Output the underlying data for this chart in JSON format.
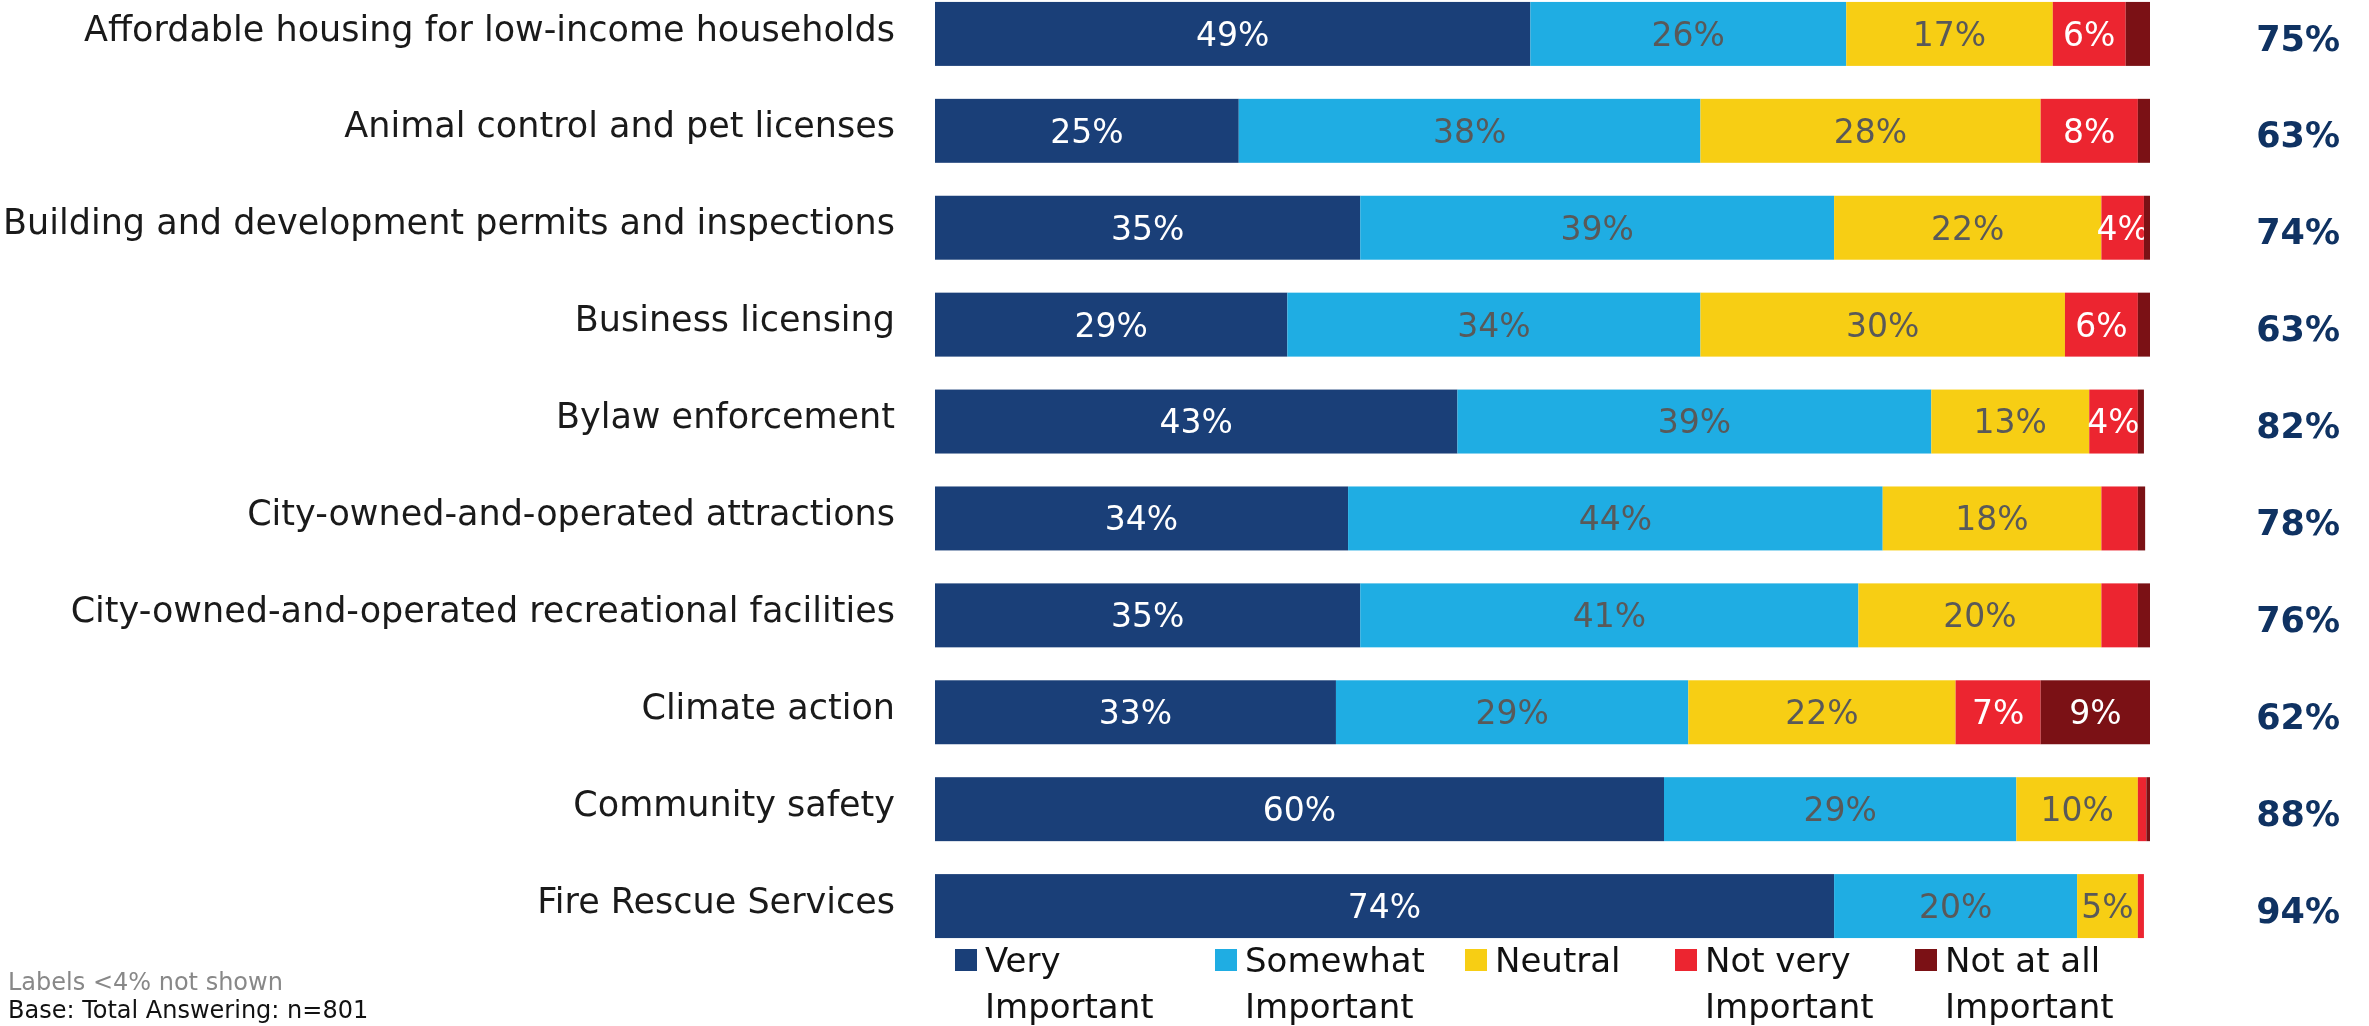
{
  "chart_data": {
    "type": "bar",
    "orientation": "horizontal",
    "stacked": true,
    "categories": [
      "Affordable housing for low-income households",
      "Animal control and pet licenses",
      "Building and development permits and inspections",
      "Business licensing",
      "Bylaw enforcement",
      "City-owned-and-operated attractions",
      "City-owned-and-operated recreational facilities",
      "Climate action",
      "Community safety",
      "Fire Rescue Services"
    ],
    "series": [
      {
        "name": "Very Important",
        "color": "#1a3f78",
        "values": [
          49,
          25,
          35,
          29,
          43,
          34,
          35,
          33,
          60,
          74
        ],
        "value_labels": [
          "49%",
          "25%",
          "35%",
          "29%",
          "43%",
          "34%",
          "35%",
          "33%",
          "60%",
          "74%"
        ]
      },
      {
        "name": "Somewhat Important",
        "color": "#1fade3",
        "values": [
          26,
          38,
          39,
          34,
          39,
          44,
          41,
          29,
          29,
          20
        ],
        "value_labels": [
          "26%",
          "38%",
          "39%",
          "34%",
          "39%",
          "44%",
          "41%",
          "29%",
          "29%",
          "20%"
        ]
      },
      {
        "name": "Neutral",
        "color": "#f7ce14",
        "values": [
          17,
          28,
          22,
          30,
          13,
          18,
          20,
          22,
          10,
          5
        ],
        "value_labels": [
          "17%",
          "28%",
          "22%",
          "30%",
          "13%",
          "18%",
          "20%",
          "22%",
          "10%",
          "5%"
        ]
      },
      {
        "name": "Not very Important",
        "color": "#ec2530",
        "values": [
          6,
          8,
          3.5,
          6,
          4,
          3,
          3,
          7,
          0.7,
          0.5
        ],
        "value_labels": [
          "6%",
          "8%",
          "4%",
          "6%",
          "4%",
          null,
          null,
          "7%",
          null,
          null
        ]
      },
      {
        "name": "Not at all Important",
        "color": "#7b1115",
        "values": [
          2,
          1,
          0.5,
          1,
          0.5,
          0.6,
          1,
          9,
          0.3,
          0
        ],
        "value_labels": [
          null,
          null,
          null,
          null,
          null,
          null,
          null,
          "9%",
          null,
          null
        ]
      }
    ],
    "xlim": [
      0,
      100
    ],
    "tick_labels": "y",
    "legend": "bottom",
    "annotations": [
      "75%",
      "63%",
      "74%",
      "63%",
      "82%",
      "78%",
      "76%",
      "62%",
      "88%",
      "94%",
      "Labels <4% not shown",
      "Base: Total Answering: n=801"
    ]
  }
}
